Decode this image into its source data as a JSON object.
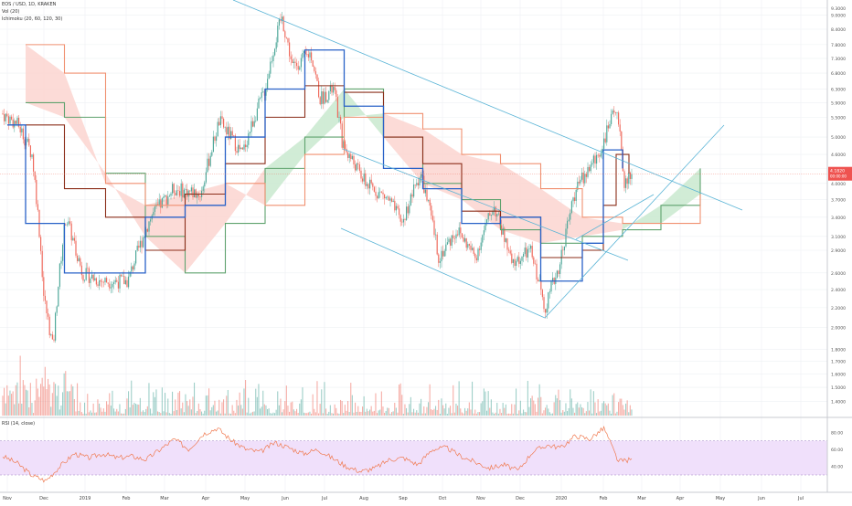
{
  "header": {
    "symbol_line": "EOS / USD, 1D, KRAKEN",
    "vol_line": "Vol (20)",
    "ichimoku_line": "Ichimoku (20, 60, 120, 30)",
    "rsi_line": "RSI (14, close)"
  },
  "colors": {
    "candle_up": "#4fa89a",
    "candle_down": "#ef6b5e",
    "conversion": "#2962c8",
    "base": "#8b2e1a",
    "lagging": "#8b2e1a",
    "span_a": "#5fa26e",
    "span_b": "#f09070",
    "cloud_bull": "#c9e9cf",
    "cloud_bear": "#fbd5d0",
    "trendline": "#5ab4d6",
    "rsi_line": "#f07a50",
    "rsi_band": "#f0e0fb",
    "price_badge_bg": "#ef5350",
    "grid": "#eef0f3"
  },
  "chart_data": [
    {
      "type": "candlestick",
      "title": "EOS / USD, 1D, KRAKEN",
      "price_axis_ticks": [
        "9.3000",
        "9.0000",
        "8.4000",
        "7.8000",
        "7.3000",
        "6.8000",
        "6.3000",
        "5.9000",
        "5.5000",
        "5.0000",
        "4.6000",
        "4.3000",
        "4.0000",
        "3.7000",
        "3.4000",
        "3.1000",
        "2.9000",
        "2.6000",
        "2.4000",
        "2.2000",
        "2.0000",
        "1.8000",
        "1.7000",
        "1.6000",
        "1.5000",
        "1.4000"
      ],
      "last_price": "4.1820",
      "last_price_sub": "00:00:00",
      "time_axis_labels": [
        "Nov",
        "Dec",
        "2019",
        "Feb",
        "Mar",
        "Apr",
        "May",
        "Jun",
        "Jul",
        "Aug",
        "Sep",
        "Oct",
        "Nov",
        "Dec",
        "2020",
        "Feb",
        "Mar",
        "Apr",
        "May",
        "Jun",
        "Jul"
      ],
      "series": [
        {
          "name": "Conversion Line",
          "points": [
            [
              "2018-11",
              5.3
            ],
            [
              "2018-11",
              3.3
            ],
            [
              "2018-12",
              2.6
            ],
            [
              "2019-01",
              2.6
            ],
            [
              "2019-02",
              3.4
            ],
            [
              "2019-03",
              3.6
            ],
            [
              "2019-04",
              5.0
            ],
            [
              "2019-05",
              6.3
            ],
            [
              "2019-06",
              7.6
            ],
            [
              "2019-07",
              5.8
            ],
            [
              "2019-08",
              4.3
            ],
            [
              "2019-09",
              3.9
            ],
            [
              "2019-10",
              3.3
            ],
            [
              "2019-11",
              3.4
            ],
            [
              "2019-12",
              2.5
            ],
            [
              "2020-01",
              3.0
            ],
            [
              "2020-02",
              4.7
            ],
            [
              "2020-02",
              4.3
            ]
          ]
        },
        {
          "name": "Base Line",
          "points": [
            [
              "2018-11",
              5.3
            ],
            [
              "2018-12",
              3.9
            ],
            [
              "2019-01",
              3.4
            ],
            [
              "2019-02",
              2.9
            ],
            [
              "2019-03",
              3.8
            ],
            [
              "2019-04",
              4.4
            ],
            [
              "2019-05",
              5.5
            ],
            [
              "2019-06",
              6.4
            ],
            [
              "2019-07",
              6.2
            ],
            [
              "2019-08",
              5.0
            ],
            [
              "2019-09",
              4.4
            ],
            [
              "2019-10",
              3.5
            ],
            [
              "2019-11",
              3.4
            ],
            [
              "2019-12",
              2.8
            ],
            [
              "2020-01",
              2.9
            ],
            [
              "2020-02",
              3.6
            ],
            [
              "2020-02",
              4.6
            ],
            [
              "2020-02",
              4.2
            ]
          ]
        },
        {
          "name": "Leading Span A",
          "points": [
            [
              "2018-11",
              5.9
            ],
            [
              "2018-12",
              5.5
            ],
            [
              "2019-01",
              4.2
            ],
            [
              "2019-02",
              3.1
            ],
            [
              "2019-03",
              2.6
            ],
            [
              "2019-04",
              3.3
            ],
            [
              "2019-05",
              4.3
            ],
            [
              "2019-06",
              5.0
            ],
            [
              "2019-07",
              6.3
            ],
            [
              "2019-08",
              5.0
            ],
            [
              "2019-09",
              4.0
            ],
            [
              "2019-10",
              3.7
            ],
            [
              "2019-11",
              3.2
            ],
            [
              "2019-12",
              3.0
            ],
            [
              "2020-01",
              3.1
            ],
            [
              "2020-02",
              3.2
            ],
            [
              "2020-03",
              3.6
            ],
            [
              "2020-04",
              4.3
            ]
          ]
        },
        {
          "name": "Leading Span B",
          "points": [
            [
              "2018-11",
              7.8
            ],
            [
              "2018-12",
              6.8
            ],
            [
              "2019-01",
              4.0
            ],
            [
              "2019-02",
              3.6
            ],
            [
              "2019-03",
              3.8
            ],
            [
              "2019-04",
              4.0
            ],
            [
              "2019-05",
              3.6
            ],
            [
              "2019-06",
              4.6
            ],
            [
              "2019-07",
              5.5
            ],
            [
              "2019-08",
              5.6
            ],
            [
              "2019-09",
              5.2
            ],
            [
              "2019-10",
              4.6
            ],
            [
              "2019-11",
              4.4
            ],
            [
              "2019-12",
              3.9
            ],
            [
              "2020-01",
              3.4
            ],
            [
              "2020-02",
              3.3
            ],
            [
              "2020-03",
              3.3
            ],
            [
              "2020-04",
              3.8
            ]
          ]
        }
      ],
      "rsi": {
        "label": "RSI (14, close)",
        "ticks": [
          "80.00",
          "60.00",
          "40.00"
        ],
        "band": [
          30,
          70
        ],
        "values": [
          52,
          44,
          30,
          23,
          40,
          55,
          50,
          55,
          50,
          52,
          48,
          60,
          72,
          60,
          78,
          85,
          70,
          60,
          57,
          68,
          62,
          55,
          60,
          50,
          40,
          34,
          38,
          48,
          50,
          42,
          60,
          62,
          52,
          45,
          38,
          42,
          35,
          57,
          65,
          62,
          76,
          72,
          85,
          46,
          48
        ]
      },
      "volume": {
        "label": "Vol (20)"
      }
    }
  ]
}
